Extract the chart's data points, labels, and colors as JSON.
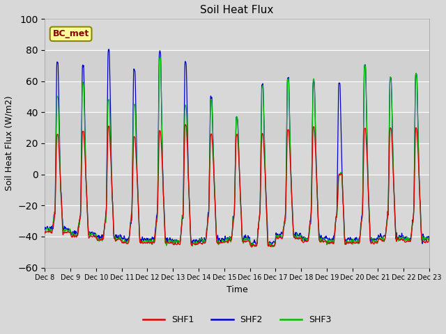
{
  "title": "Soil Heat Flux",
  "ylabel": "Soil Heat Flux (W/m2)",
  "xlabel": "Time",
  "ylim": [
    -60,
    100
  ],
  "yticks": [
    -60,
    -40,
    -20,
    0,
    20,
    40,
    60,
    80,
    100
  ],
  "start_day": 8,
  "end_day": 23,
  "n_days": 15,
  "colors": {
    "SHF1": "#dd0000",
    "SHF2": "#0000cc",
    "SHF3": "#00bb00"
  },
  "background_color": "#d8d8d8",
  "plot_bg_color": "#d8d8d8",
  "annotation_text": "BC_met",
  "annotation_bg": "#ffff99",
  "annotation_border": "#888800",
  "grid_color": "#ffffff",
  "figsize": [
    6.4,
    4.8
  ],
  "dpi": 100
}
